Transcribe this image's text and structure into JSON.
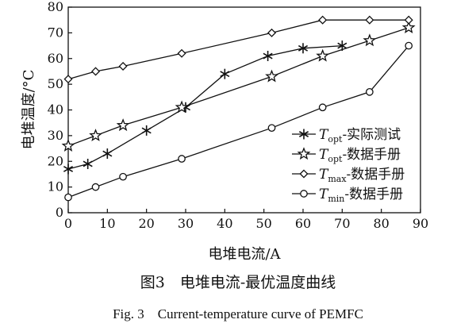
{
  "chart_data": {
    "type": "line",
    "xlabel": "电堆电流/A",
    "ylabel": "电堆温度/°C",
    "xlim": [
      0,
      90
    ],
    "ylim": [
      0,
      80
    ],
    "xticks": [
      0,
      10,
      20,
      30,
      40,
      50,
      60,
      70,
      80,
      90
    ],
    "yticks": [
      0,
      10,
      20,
      30,
      40,
      50,
      60,
      70,
      80
    ],
    "grid": false,
    "legend_position": "lower-right",
    "series": [
      {
        "name": "T_opt-实际测试",
        "legend": {
          "T": "T",
          "sub": "opt",
          "rest": "-实际测试"
        },
        "marker": "asterisk",
        "x": [
          0,
          5,
          10,
          20,
          30,
          40,
          51,
          60,
          70
        ],
        "y": [
          17,
          19,
          23,
          32,
          41,
          54,
          61,
          64,
          65
        ]
      },
      {
        "name": "T_opt-数据手册",
        "legend": {
          "T": "T",
          "sub": "opt",
          "rest": "-数据手册"
        },
        "marker": "star",
        "x": [
          0,
          7,
          14,
          29,
          52,
          65,
          77,
          87
        ],
        "y": [
          26,
          30,
          34,
          41,
          53,
          61,
          67,
          72
        ]
      },
      {
        "name": "T_max-数据手册",
        "legend": {
          "T": "T",
          "sub": "max",
          "rest": "-数据手册"
        },
        "marker": "diamond",
        "x": [
          0,
          7,
          14,
          29,
          52,
          65,
          77,
          87
        ],
        "y": [
          52,
          55,
          57,
          62,
          70,
          75,
          75,
          75
        ]
      },
      {
        "name": "T_min-数据手册",
        "legend": {
          "T": "T",
          "sub": "min",
          "rest": "-数据手册"
        },
        "marker": "circle",
        "x": [
          0,
          7,
          14,
          29,
          52,
          65,
          77,
          87
        ],
        "y": [
          6,
          10,
          14,
          21,
          33,
          41,
          47,
          65
        ]
      }
    ]
  },
  "caption": {
    "cn": "图3　电堆电流-最优温度曲线",
    "en": "Fig. 3　Current-temperature curve of PEMFC"
  }
}
